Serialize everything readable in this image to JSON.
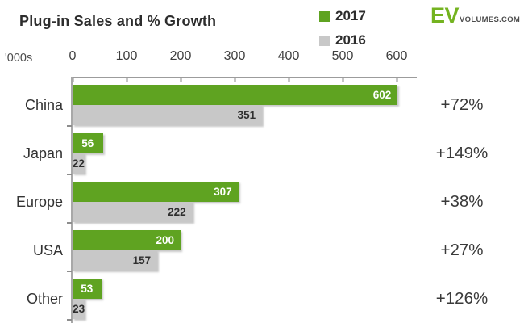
{
  "title": "Plug-in Sales and % Growth",
  "unit_label": "'000s",
  "logo": {
    "ev": "EV",
    "suffix": "VOLUMES.COM"
  },
  "colors": {
    "green_2017": "#5fa321",
    "gray_2016": "#c8c8c8",
    "green_bar_label": "#ffffff",
    "gray_bar_label": "#2f2f2f",
    "logo_green": "#74b320",
    "grid": "#cfcfcf",
    "axis": "#9c9c9c"
  },
  "legend": [
    {
      "label": "2017",
      "color": "#5fa321"
    },
    {
      "label": "2016",
      "color": "#c8c8c8"
    }
  ],
  "chart_data": {
    "type": "bar",
    "orientation": "horizontal",
    "title": "Plug-in Sales and % Growth",
    "xlabel": "'000s",
    "xlim": [
      0,
      600
    ],
    "xticks": [
      0,
      100,
      200,
      300,
      400,
      500,
      600
    ],
    "grid": true,
    "legend_position": "top",
    "categories": [
      "China",
      "Japan",
      "Europe",
      "USA",
      "Other"
    ],
    "series": [
      {
        "name": "2017",
        "color": "#5fa321",
        "values": [
          602,
          56,
          307,
          200,
          53
        ]
      },
      {
        "name": "2016",
        "color": "#c8c8c8",
        "values": [
          351,
          22,
          222,
          157,
          23
        ]
      }
    ],
    "growth_labels": [
      "+72%",
      "+149%",
      "+38%",
      "+27%",
      "+126%"
    ]
  }
}
